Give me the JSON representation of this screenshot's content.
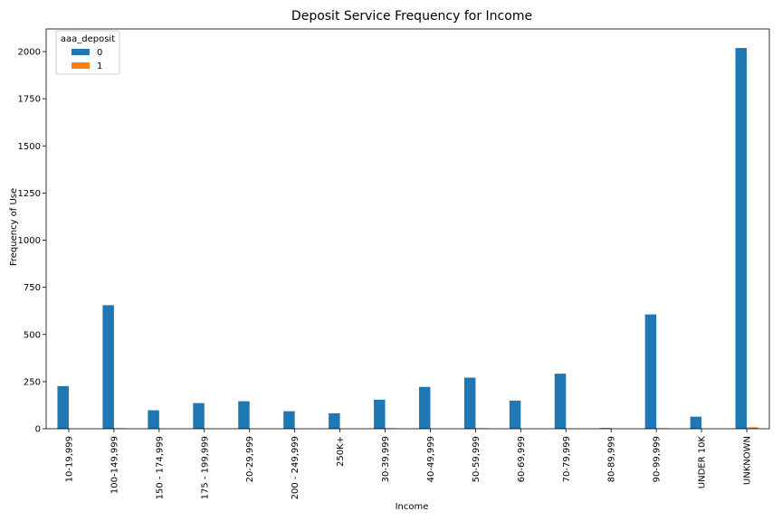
{
  "chart_data": {
    "type": "bar",
    "title": "Deposit Service Frequency for Income",
    "xlabel": "Income",
    "ylabel": "Frequency of Use",
    "categories": [
      "10-19,999",
      "100-149,999",
      "150 - 174,999",
      "175 - 199,999",
      "20-29,999",
      "200 - 249,999",
      "250K+",
      "30-39,999",
      "40-49,999",
      "50-59,999",
      "60-69,999",
      "70-79,999",
      "80-89,999",
      "90-99,999",
      "UNDER 10K",
      "UNKNOWN"
    ],
    "series": [
      {
        "name": "0",
        "color": "#1f77b4",
        "values": [
          226,
          655,
          98,
          136,
          146,
          93,
          82,
          154,
          222,
          271,
          149,
          292,
          4,
          606,
          64,
          2019
        ]
      },
      {
        "name": "1",
        "color": "#ff7f0e",
        "values": [
          0,
          3,
          0,
          0,
          0,
          0,
          0,
          3,
          0,
          3,
          0,
          0,
          0,
          3,
          0,
          8
        ]
      }
    ],
    "ylim": [
      0,
      2120
    ],
    "yticks": [
      0,
      250,
      500,
      750,
      1000,
      1250,
      1500,
      1750,
      2000
    ],
    "legend": {
      "title": "aaa_deposit",
      "placement": "top-left"
    },
    "grid": false
  }
}
